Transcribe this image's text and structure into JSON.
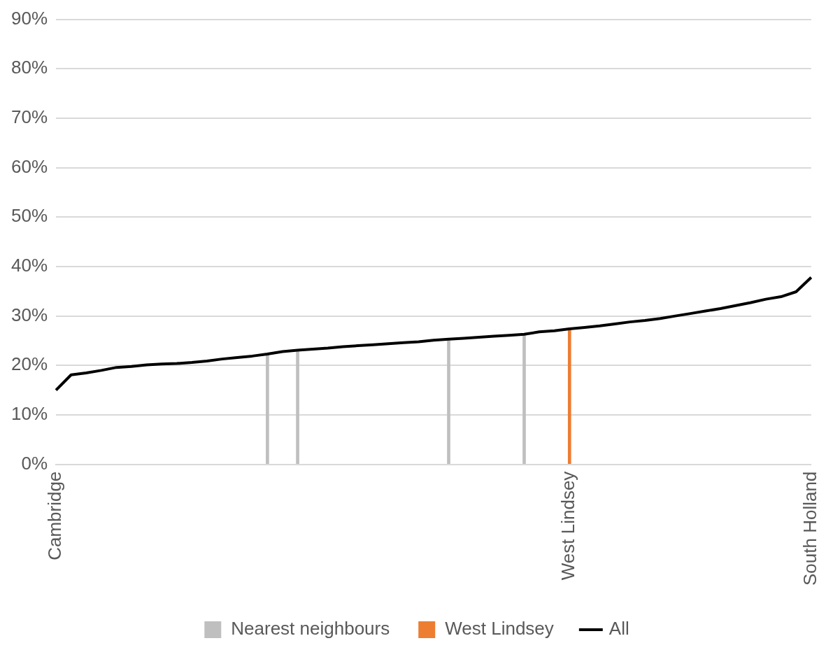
{
  "chart_data": {
    "type": "bar",
    "categories": [
      "Cambridge",
      null,
      null,
      null,
      null,
      null,
      null,
      null,
      null,
      null,
      null,
      null,
      null,
      null,
      null,
      null,
      null,
      null,
      null,
      null,
      null,
      null,
      null,
      null,
      null,
      null,
      null,
      null,
      null,
      null,
      null,
      null,
      null,
      null,
      "West Lindsey",
      null,
      null,
      null,
      null,
      null,
      null,
      null,
      null,
      null,
      null,
      null,
      null,
      null,
      null,
      null,
      "South Holland"
    ],
    "series": [
      {
        "name": "Nearest neighbours",
        "color": "#bfbfbf",
        "values": [
          null,
          null,
          null,
          null,
          null,
          null,
          null,
          null,
          null,
          null,
          null,
          null,
          null,
          null,
          22.3,
          null,
          23.1,
          null,
          null,
          null,
          null,
          null,
          null,
          null,
          null,
          null,
          25.3,
          null,
          null,
          null,
          null,
          26.3,
          null,
          null,
          null,
          null,
          null,
          null,
          null,
          null,
          null,
          null,
          null,
          null,
          null,
          null,
          null,
          null,
          null,
          null,
          null
        ]
      },
      {
        "name": "West Lindsey",
        "color": "#ed7d31",
        "values": [
          null,
          null,
          null,
          null,
          null,
          null,
          null,
          null,
          null,
          null,
          null,
          null,
          null,
          null,
          null,
          null,
          null,
          null,
          null,
          null,
          null,
          null,
          null,
          null,
          null,
          null,
          null,
          null,
          null,
          null,
          null,
          null,
          null,
          null,
          27.4,
          null,
          null,
          null,
          null,
          null,
          null,
          null,
          null,
          null,
          null,
          null,
          null,
          null,
          null,
          null,
          null
        ]
      },
      {
        "name": "All",
        "type": "line",
        "color": "#000000",
        "values": [
          15.0,
          18.1,
          18.5,
          19.0,
          19.6,
          19.8,
          20.1,
          20.3,
          20.4,
          20.6,
          20.9,
          21.3,
          21.6,
          21.9,
          22.3,
          22.8,
          23.1,
          23.3,
          23.5,
          23.8,
          24.0,
          24.2,
          24.4,
          24.6,
          24.8,
          25.1,
          25.3,
          25.5,
          25.7,
          25.9,
          26.1,
          26.3,
          26.8,
          27.0,
          27.4,
          27.7,
          28.0,
          28.4,
          28.8,
          29.1,
          29.5,
          30.0,
          30.5,
          31.0,
          31.5,
          32.1,
          32.7,
          33.4,
          33.9,
          34.9,
          37.8
        ]
      }
    ],
    "ylim": [
      0,
      90
    ],
    "yticks": [
      {
        "value": 0,
        "label": "0%"
      },
      {
        "value": 10,
        "label": "10%"
      },
      {
        "value": 20,
        "label": "20%"
      },
      {
        "value": 30,
        "label": "30%"
      },
      {
        "value": 40,
        "label": "40%"
      },
      {
        "value": 50,
        "label": "50%"
      },
      {
        "value": 60,
        "label": "60%"
      },
      {
        "value": 70,
        "label": "70%"
      },
      {
        "value": 80,
        "label": "80%"
      },
      {
        "value": 90,
        "label": "90%"
      }
    ],
    "grid": "y",
    "legend": "bottom",
    "marker": "none",
    "line_style": "solid"
  }
}
